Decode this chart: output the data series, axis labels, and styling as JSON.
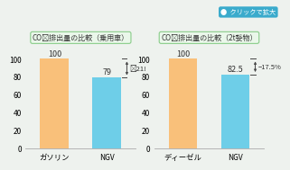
{
  "chart1_title": "CO₂排出量の比較（乗用車）",
  "chart1_categories": [
    "ガソリン",
    "NGV"
  ],
  "chart1_values": [
    100,
    79
  ],
  "chart1_diff_label": "∗21!",
  "chart2_title": "CO₂排出量の比較（2t㛷物）",
  "chart2_categories": [
    "ディーゼル",
    "NGV"
  ],
  "chart2_values": [
    100,
    82.5
  ],
  "chart2_diff_label": "−17.5%",
  "bar_color_orange": "#f9c07a",
  "bar_color_blue": "#6ecee8",
  "title_box_facecolor": "#eaf7ea",
  "title_box_edgecolor": "#88cc88",
  "ylim": [
    0,
    112
  ],
  "yticks": [
    0,
    20,
    40,
    60,
    80,
    100
  ],
  "background_color": "#eef2ee",
  "title_fontsize": 5.8,
  "label_fontsize": 6.0,
  "value_fontsize": 6.5,
  "diff_fontsize": 5.5,
  "arrow_color": "#444444",
  "click_bg": "#3aabcc",
  "click_text": "クリックで拡大"
}
